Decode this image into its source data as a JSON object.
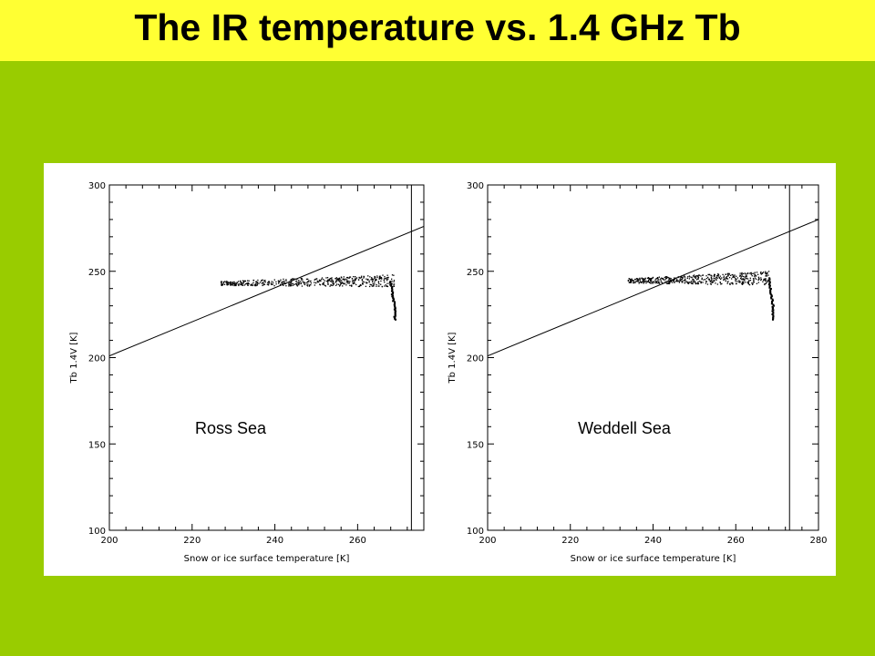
{
  "title": "The IR temperature vs. 1.4 GHz Tb",
  "colors": {
    "background": "#99cc00",
    "title_bar": "#ffff33",
    "plot_bg": "#ffffff",
    "ink": "#000000"
  },
  "chart_data": [
    {
      "type": "scatter",
      "region_label": "Ross Sea",
      "xlabel": "Snow or ice surface temperature [K]",
      "ylabel": "Tb 1.4V [K]",
      "xlim": [
        200,
        276
      ],
      "ylim": [
        100,
        300
      ],
      "x_ticks": [
        "200",
        "220",
        "240",
        "260"
      ],
      "y_ticks": [
        "100",
        "150",
        "200",
        "250",
        "300"
      ],
      "reference_line": {
        "x": [
          200,
          276
        ],
        "y": [
          201,
          276
        ]
      },
      "vertical_line_x": 273,
      "point_cloud": {
        "x_range": [
          227,
          269
        ],
        "y_range": [
          241,
          248
        ]
      },
      "drop_tail": {
        "x": [
          268,
          268.5,
          269,
          269
        ],
        "y": [
          244,
          236,
          229,
          222
        ]
      }
    },
    {
      "type": "scatter",
      "region_label": "Weddell Sea",
      "xlabel": "Snow or ice surface temperature [K]",
      "ylabel": "Tb 1.4V [K]",
      "xlim": [
        200,
        280
      ],
      "ylim": [
        100,
        300
      ],
      "x_ticks": [
        "200",
        "220",
        "240",
        "260",
        "280"
      ],
      "y_ticks": [
        "100",
        "150",
        "200",
        "250",
        "300"
      ],
      "reference_line": {
        "x": [
          200,
          280
        ],
        "y": [
          201,
          280
        ]
      },
      "vertical_line_x": 273,
      "point_cloud": {
        "x_range": [
          234,
          268
        ],
        "y_range": [
          242,
          250
        ]
      },
      "drop_tail": {
        "x": [
          268,
          268.5,
          269,
          269
        ],
        "y": [
          246,
          238,
          230,
          222
        ]
      }
    }
  ]
}
